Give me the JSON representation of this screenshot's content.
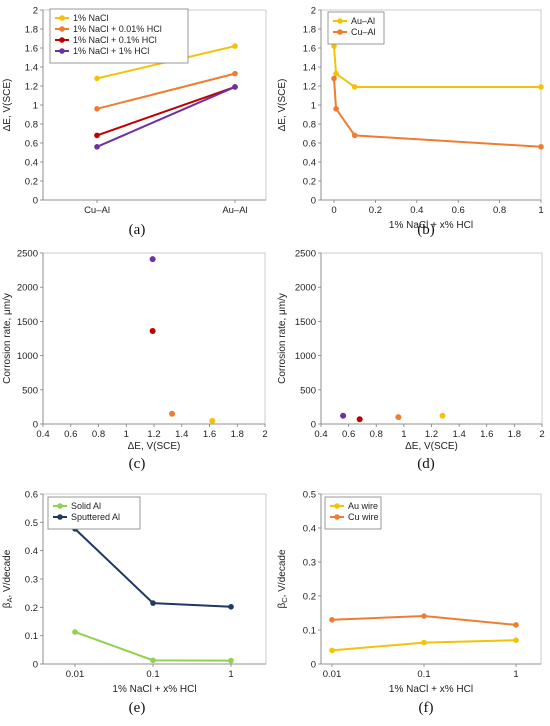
{
  "chart_data": [
    {
      "type": "line",
      "caption": "(a)",
      "xlabel": "",
      "ylabel": "ΔE, V(SCE)",
      "categories": [
        "Cu–Al",
        "Au–Al"
      ],
      "ylim": [
        0,
        2
      ],
      "yticks": [
        "0",
        "0.2",
        "0.4",
        "0.6",
        "0.8",
        "1",
        "1.2",
        "1.4",
        "1.6",
        "1.8",
        "2"
      ],
      "legend_position": "top-left",
      "series": [
        {
          "name": "1% NaCl",
          "color": "#f5c20a",
          "values": [
            1.28,
            1.62
          ]
        },
        {
          "name": "1% NaCl + 0.01% HCl",
          "color": "#ee7d31",
          "values": [
            0.96,
            1.33
          ]
        },
        {
          "name": "1% NaCl + 0.1% HCl",
          "color": "#c00000",
          "values": [
            0.68,
            1.19
          ]
        },
        {
          "name": "1% NaCl + 1% HCl",
          "color": "#7030a0",
          "values": [
            0.56,
            1.19
          ]
        }
      ]
    },
    {
      "type": "line",
      "caption": "(b)",
      "xlabel": "1% NaCl  + x% HCl",
      "ylabel": "ΔE, V(SCE)",
      "xlim": [
        0,
        1
      ],
      "ylim": [
        0,
        2
      ],
      "xticks": [
        "0",
        "0.2",
        "0.4",
        "0.6",
        "0.8",
        "1"
      ],
      "yticks": [
        "0",
        "0.2",
        "0.4",
        "0.6",
        "0.8",
        "1",
        "1.2",
        "1.4",
        "1.6",
        "1.8",
        "2"
      ],
      "legend_position": "top-left",
      "series": [
        {
          "name": "Au–Al",
          "color": "#f5c20a",
          "x": [
            0,
            0.01,
            0.1,
            1
          ],
          "values": [
            1.62,
            1.33,
            1.19,
            1.19
          ]
        },
        {
          "name": "Cu–Al",
          "color": "#ee7d31",
          "x": [
            0,
            0.01,
            0.1,
            1
          ],
          "values": [
            1.28,
            0.96,
            0.68,
            0.56
          ]
        }
      ]
    },
    {
      "type": "scatter",
      "caption": "(c)",
      "xlabel": "ΔE, V(SCE)",
      "ylabel": "Corrosion rate, μm/y",
      "xlim": [
        0.4,
        2
      ],
      "ylim": [
        0,
        2500
      ],
      "xticks": [
        "0.4",
        "0.6",
        "0.8",
        "1",
        "1.2",
        "1.4",
        "1.6",
        "1.8",
        "2"
      ],
      "yticks": [
        "0",
        "500",
        "1000",
        "1500",
        "2000",
        "2500"
      ],
      "points": [
        {
          "x": 1.62,
          "y": 45,
          "color": "#f5c20a"
        },
        {
          "x": 1.33,
          "y": 150,
          "color": "#ee7d31"
        },
        {
          "x": 1.19,
          "y": 1360,
          "color": "#c00000"
        },
        {
          "x": 1.19,
          "y": 2410,
          "color": "#7030a0"
        }
      ]
    },
    {
      "type": "scatter",
      "caption": "(d)",
      "xlabel": "ΔE, V(SCE)",
      "ylabel": "Corrosion rate, μm/y",
      "xlim": [
        0.4,
        2
      ],
      "ylim": [
        0,
        2500
      ],
      "xticks": [
        "0.4",
        "0.6",
        "0.8",
        "1",
        "1.2",
        "1.4",
        "1.6",
        "1.8",
        "2"
      ],
      "yticks": [
        "0",
        "500",
        "1000",
        "1500",
        "2000",
        "2500"
      ],
      "points": [
        {
          "x": 1.28,
          "y": 120,
          "color": "#f5c20a"
        },
        {
          "x": 0.96,
          "y": 100,
          "color": "#ee7d31"
        },
        {
          "x": 0.68,
          "y": 70,
          "color": "#c00000"
        },
        {
          "x": 0.56,
          "y": 120,
          "color": "#7030a0"
        }
      ]
    },
    {
      "type": "line",
      "caption": "(e)",
      "xlabel": "1% NaCl  + x% HCl",
      "ylabel": "βA, V/decade",
      "ylabel_main": "β",
      "ylabel_sub": "A",
      "ylabel_rest": ", V/decade",
      "categories": [
        "0.01",
        "0.1",
        "1"
      ],
      "ylim": [
        0,
        0.6
      ],
      "yticks": [
        "0",
        "0.1",
        "0.2",
        "0.3",
        "0.4",
        "0.5",
        "0.6"
      ],
      "legend_position": "top-left",
      "series": [
        {
          "name": "Solid Al",
          "color": "#92d050",
          "values": [
            0.113,
            0.013,
            0.012
          ]
        },
        {
          "name": "Sputtered Al",
          "color": "#1f3864",
          "values": [
            0.477,
            0.215,
            0.202
          ]
        }
      ]
    },
    {
      "type": "line",
      "caption": "(f)",
      "xlabel": "1% NaCl  + x% HCl",
      "ylabel": "βC, V/decade",
      "ylabel_main": "β",
      "ylabel_sub": "C",
      "ylabel_rest": ", V/decade",
      "categories": [
        "0.01",
        "0.1",
        "1"
      ],
      "ylim": [
        0,
        0.5
      ],
      "yticks": [
        "0",
        "0.1",
        "0.2",
        "0.3",
        "0.4",
        "0.5"
      ],
      "legend_position": "top-left",
      "series": [
        {
          "name": "Au wire",
          "color": "#f5c20a",
          "values": [
            0.04,
            0.063,
            0.07
          ]
        },
        {
          "name": "Cu wire",
          "color": "#ee7d31",
          "values": [
            0.13,
            0.141,
            0.115
          ]
        }
      ]
    }
  ]
}
